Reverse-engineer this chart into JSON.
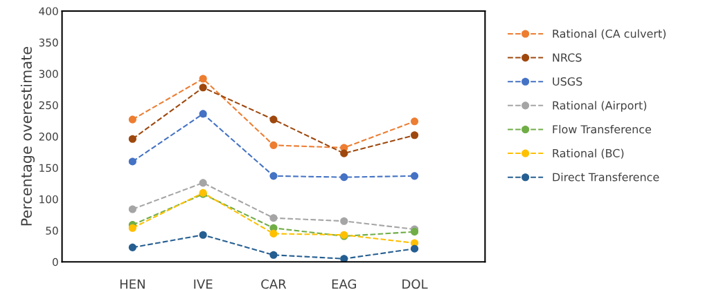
{
  "chart_data": {
    "type": "line",
    "ylabel": "Percentage overestimate",
    "categories": [
      "HEN",
      "IVE",
      "CAR",
      "EAG",
      "DOL"
    ],
    "ylim": [
      0,
      400
    ],
    "yticks": [
      0,
      50,
      100,
      150,
      200,
      250,
      300,
      350,
      400
    ],
    "grid": false,
    "legend": "right",
    "marker": "circle",
    "line_style": "dashed",
    "series": [
      {
        "name": "Rational (CA culvert)",
        "color": "#ed7d31",
        "values": [
          227,
          292,
          186,
          182,
          224
        ]
      },
      {
        "name": "NRCS",
        "color": "#9e480e",
        "values": [
          196,
          278,
          227,
          173,
          202
        ]
      },
      {
        "name": "USGS",
        "color": "#4472c4",
        "values": [
          160,
          236,
          137,
          135,
          137
        ]
      },
      {
        "name": "Rational (Airport)",
        "color": "#a5a5a5",
        "values": [
          84,
          126,
          70,
          65,
          52
        ]
      },
      {
        "name": "Flow Transference",
        "color": "#70ad47",
        "values": [
          59,
          108,
          54,
          41,
          48
        ]
      },
      {
        "name": "Rational (BC)",
        "color": "#ffc000",
        "values": [
          54,
          110,
          45,
          43,
          30
        ]
      },
      {
        "name": "Direct Transference",
        "color": "#255e91",
        "values": [
          23,
          43,
          11,
          5,
          21
        ]
      }
    ]
  }
}
